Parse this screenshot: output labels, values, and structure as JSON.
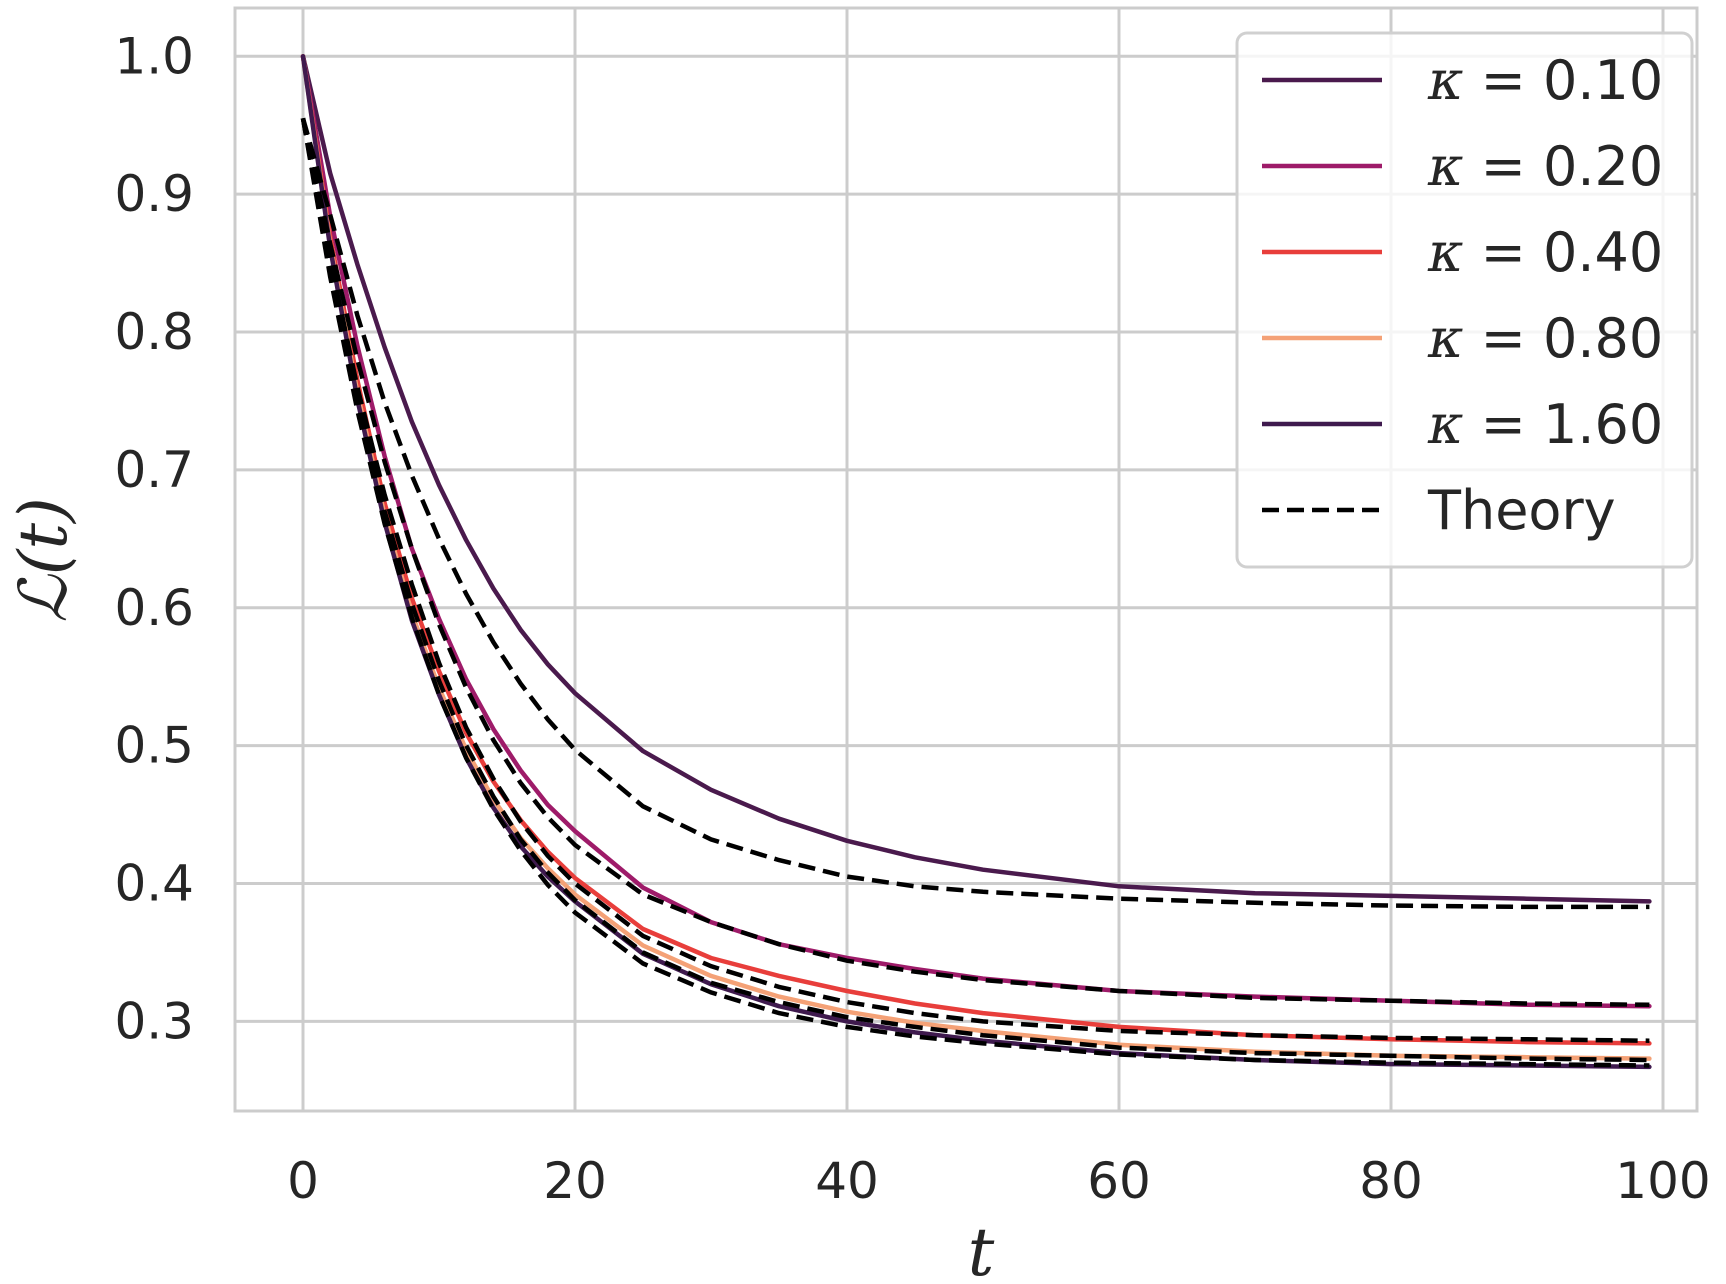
{
  "chart_data": {
    "type": "line",
    "title": "",
    "xlabel": "t",
    "ylabel": "ℒ(t)",
    "xlim": [
      -5,
      102.5
    ],
    "ylim": [
      0.235,
      1.035
    ],
    "xticks": [
      0,
      20,
      40,
      60,
      80,
      100
    ],
    "xtick_labels": [
      "0",
      "20",
      "40",
      "60",
      "80",
      "100"
    ],
    "yticks": [
      0.3,
      0.4,
      0.5,
      0.6,
      0.7,
      0.8,
      0.9,
      1.0
    ],
    "ytick_labels": [
      "0.3",
      "0.4",
      "0.5",
      "0.6",
      "0.7",
      "0.8",
      "0.9",
      "1.0"
    ],
    "grid": true,
    "legend_position": "top-right",
    "x": [
      0,
      2,
      4,
      6,
      8,
      10,
      12,
      14,
      16,
      18,
      20,
      25,
      30,
      35,
      40,
      45,
      50,
      60,
      70,
      80,
      90,
      99
    ],
    "series": [
      {
        "name": "κ = 0.10",
        "legend_prefix": "κ",
        "legend_value": "= 0.10",
        "color": "#4a1a4d",
        "style": "solid",
        "values": [
          1.0,
          0.915,
          0.849,
          0.789,
          0.735,
          0.689,
          0.649,
          0.614,
          0.584,
          0.559,
          0.538,
          0.496,
          0.468,
          0.447,
          0.431,
          0.419,
          0.41,
          0.398,
          0.393,
          0.391,
          0.389,
          0.387
        ]
      },
      {
        "name": "κ = 0.20",
        "legend_prefix": "κ",
        "legend_value": "= 0.20",
        "color": "#9e1b69",
        "style": "solid",
        "values": [
          1.0,
          0.884,
          0.79,
          0.71,
          0.643,
          0.592,
          0.548,
          0.512,
          0.482,
          0.457,
          0.438,
          0.397,
          0.372,
          0.356,
          0.346,
          0.338,
          0.331,
          0.322,
          0.318,
          0.315,
          0.312,
          0.311
        ]
      },
      {
        "name": "κ = 0.40",
        "legend_prefix": "κ",
        "legend_value": "= 0.40",
        "color": "#e83e3b",
        "style": "solid",
        "values": [
          1.0,
          0.869,
          0.765,
          0.676,
          0.607,
          0.554,
          0.509,
          0.474,
          0.446,
          0.423,
          0.404,
          0.367,
          0.346,
          0.333,
          0.322,
          0.313,
          0.306,
          0.296,
          0.29,
          0.287,
          0.285,
          0.284
        ]
      },
      {
        "name": "κ = 0.80",
        "legend_prefix": "κ",
        "legend_value": "= 0.80",
        "color": "#f4a176",
        "style": "solid",
        "values": [
          1.0,
          0.864,
          0.756,
          0.667,
          0.596,
          0.542,
          0.497,
          0.461,
          0.433,
          0.411,
          0.392,
          0.355,
          0.333,
          0.318,
          0.307,
          0.299,
          0.293,
          0.283,
          0.278,
          0.275,
          0.274,
          0.273
        ]
      },
      {
        "name": "κ = 1.60",
        "legend_prefix": "κ",
        "legend_value": "= 1.60",
        "color": "#3f1a4e",
        "style": "solid",
        "values": [
          1.0,
          0.861,
          0.751,
          0.662,
          0.591,
          0.537,
          0.491,
          0.455,
          0.427,
          0.405,
          0.387,
          0.349,
          0.327,
          0.311,
          0.3,
          0.292,
          0.286,
          0.277,
          0.272,
          0.269,
          0.268,
          0.267
        ]
      }
    ],
    "theory": {
      "name": "Theory",
      "color": "#000000",
      "style": "dashed",
      "curves": [
        [
          0.955,
          0.885,
          0.812,
          0.749,
          0.696,
          0.65,
          0.61,
          0.575,
          0.545,
          0.519,
          0.497,
          0.456,
          0.432,
          0.417,
          0.405,
          0.398,
          0.394,
          0.389,
          0.386,
          0.384,
          0.383,
          0.383
        ],
        [
          0.955,
          0.864,
          0.78,
          0.706,
          0.643,
          0.588,
          0.542,
          0.504,
          0.473,
          0.448,
          0.428,
          0.392,
          0.372,
          0.356,
          0.344,
          0.336,
          0.33,
          0.322,
          0.317,
          0.315,
          0.313,
          0.312
        ],
        [
          0.955,
          0.852,
          0.76,
          0.682,
          0.617,
          0.56,
          0.513,
          0.476,
          0.445,
          0.42,
          0.4,
          0.362,
          0.34,
          0.325,
          0.314,
          0.306,
          0.3,
          0.293,
          0.29,
          0.288,
          0.287,
          0.286
        ],
        [
          0.955,
          0.845,
          0.75,
          0.67,
          0.603,
          0.547,
          0.5,
          0.463,
          0.432,
          0.408,
          0.388,
          0.35,
          0.328,
          0.314,
          0.303,
          0.296,
          0.29,
          0.281,
          0.277,
          0.275,
          0.273,
          0.272
        ],
        [
          0.955,
          0.84,
          0.743,
          0.661,
          0.593,
          0.537,
          0.491,
          0.454,
          0.424,
          0.399,
          0.379,
          0.342,
          0.321,
          0.306,
          0.296,
          0.289,
          0.284,
          0.276,
          0.272,
          0.27,
          0.269,
          0.268
        ]
      ]
    }
  }
}
